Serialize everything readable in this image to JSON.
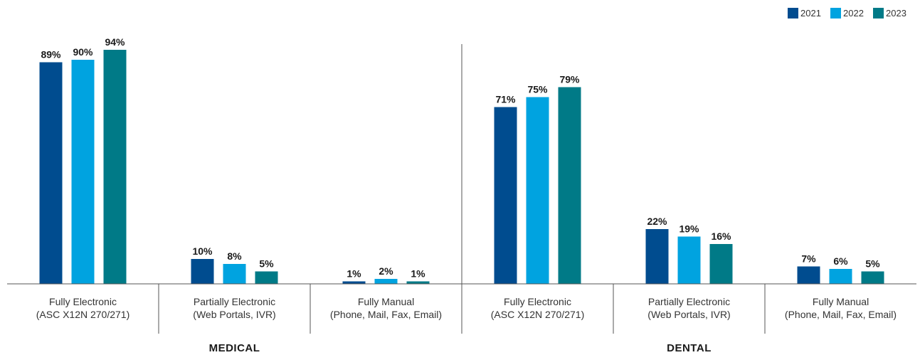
{
  "chart_data": {
    "type": "bar",
    "groups": [
      "MEDICAL",
      "DENTAL"
    ],
    "categories": [
      [
        "Fully Electronic",
        "(ASC X12N 270/271)"
      ],
      [
        "Partially Electronic",
        "(Web Portals, IVR)"
      ],
      [
        "Fully Manual",
        "(Phone, Mail, Fax, Email)"
      ],
      [
        "Fully Electronic",
        "(ASC X12N 270/271)"
      ],
      [
        "Partially Electronic",
        "(Web Portals, IVR)"
      ],
      [
        "Fully Manual",
        "(Phone, Mail, Fax, Email)"
      ]
    ],
    "series": [
      {
        "name": "2021",
        "color": "#004c8f",
        "values": [
          89,
          10,
          1,
          71,
          22,
          7
        ]
      },
      {
        "name": "2022",
        "color": "#00a3e0",
        "values": [
          90,
          8,
          2,
          75,
          19,
          6
        ]
      },
      {
        "name": "2023",
        "color": "#007a87",
        "values": [
          94,
          5,
          1,
          79,
          16,
          5
        ]
      }
    ],
    "value_suffix": "%",
    "ylim": [
      0,
      100
    ],
    "grid": false,
    "legend_position": "top-right"
  }
}
